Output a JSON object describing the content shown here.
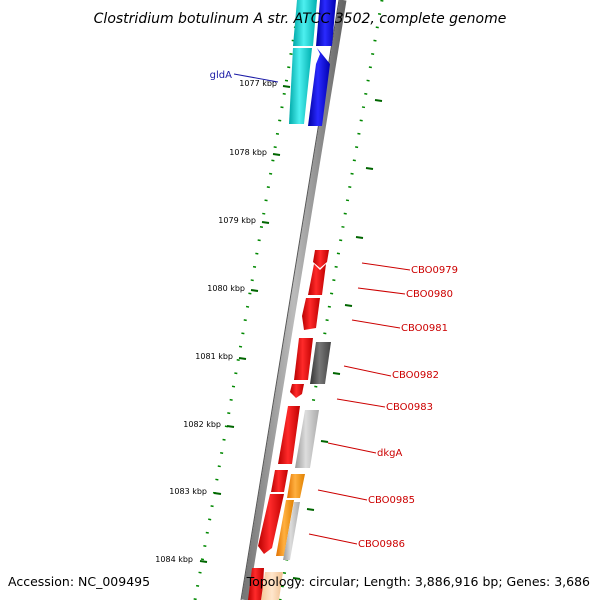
{
  "title": "Clostridium botulinum A str. ATCC 3502, complete genome",
  "footer": {
    "accession": "Accession: NC_009495",
    "topology": "Topology: circular; Length: 3,886,916 bp; Genes: 3,686"
  },
  "ticks": [
    "1077 kbp",
    "1078 kbp",
    "1079 kbp",
    "1080 kbp",
    "1081 kbp",
    "1082 kbp",
    "1083 kbp",
    "1084 kbp"
  ],
  "genes": [
    {
      "name": "gldA",
      "color": "#1a1aa6"
    },
    {
      "name": "CBO0979",
      "color": "#cc0000"
    },
    {
      "name": "CBO0980",
      "color": "#cc0000"
    },
    {
      "name": "CBO0981",
      "color": "#cc0000"
    },
    {
      "name": "CBO0982",
      "color": "#cc0000"
    },
    {
      "name": "CBO0983",
      "color": "#cc0000"
    },
    {
      "name": "dkgA",
      "color": "#cc0000"
    },
    {
      "name": "CBO0985",
      "color": "#cc0000"
    },
    {
      "name": "CBO0986",
      "color": "#cc0000"
    }
  ],
  "colors": {
    "cds_forward": "#e60000",
    "cds_reverse_blue": "#0000ee",
    "cyan_track": "#00cccc",
    "orange_track": "#ff9900",
    "dark_gray_track": "#555555",
    "light_gray_track": "#bbbbbb",
    "tick_color": "#006600",
    "backbone": "#888888"
  }
}
